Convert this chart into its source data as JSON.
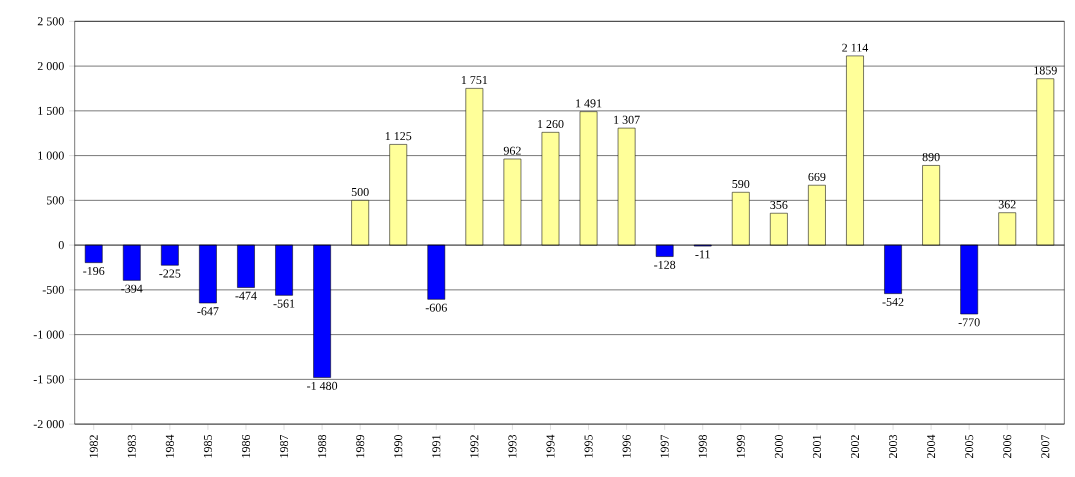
{
  "chart_data": {
    "type": "bar",
    "categories": [
      "1982",
      "1983",
      "1984",
      "1985",
      "1986",
      "1987",
      "1988",
      "1989",
      "1990",
      "1991",
      "1992",
      "1993",
      "1994",
      "1995",
      "1996",
      "1997",
      "1998",
      "1999",
      "2000",
      "2001",
      "2002",
      "2003",
      "2004",
      "2005",
      "2006",
      "2007"
    ],
    "values": [
      -196,
      -394,
      -225,
      -647,
      -474,
      -561,
      -1480,
      500,
      1125,
      -606,
      1751,
      962,
      1260,
      1491,
      1307,
      -128,
      -11,
      590,
      356,
      669,
      2114,
      -542,
      890,
      -770,
      362,
      1859
    ],
    "colors": [
      "#0000ff",
      "#0000ff",
      "#0000ff",
      "#0000ff",
      "#0000ff",
      "#0000ff",
      "#0000ff",
      "#ffff99",
      "#ffff99",
      "#0000ff",
      "#ffff99",
      "#ffff99",
      "#ffff99",
      "#ffff99",
      "#ffff99",
      "#0000ff",
      "#0000ff",
      "#ffff99",
      "#ffff99",
      "#ffff99",
      "#ffff99",
      "#0000ff",
      "#ffff99",
      "#0000ff",
      "#ffff99",
      "#ffff99"
    ],
    "value_labels": [
      "-196",
      "-394",
      "-225",
      "-647",
      "-474",
      "-561",
      "-1 480",
      "500",
      "1 125",
      "-606",
      "1 751",
      "962",
      "1 260",
      "1 491",
      "1 307",
      "-128",
      "-11",
      "590",
      "356",
      "669",
      "2 114",
      "-542",
      "890",
      "-770",
      "362",
      "1859"
    ],
    "ylim": [
      -2000,
      2500
    ],
    "yticks": [
      {
        "value": -2000,
        "label": "-2 000"
      },
      {
        "value": -1500,
        "label": "-1 500"
      },
      {
        "value": -1000,
        "label": "-1 000"
      },
      {
        "value": -500,
        "label": "-500"
      },
      {
        "value": 0,
        "label": "0"
      },
      {
        "value": 500,
        "label": "500"
      },
      {
        "value": 1000,
        "label": "1 000"
      },
      {
        "value": 1500,
        "label": "1 500"
      },
      {
        "value": 2000,
        "label": "2 000"
      },
      {
        "value": 2500,
        "label": "2 500"
      }
    ],
    "grid": "y"
  }
}
